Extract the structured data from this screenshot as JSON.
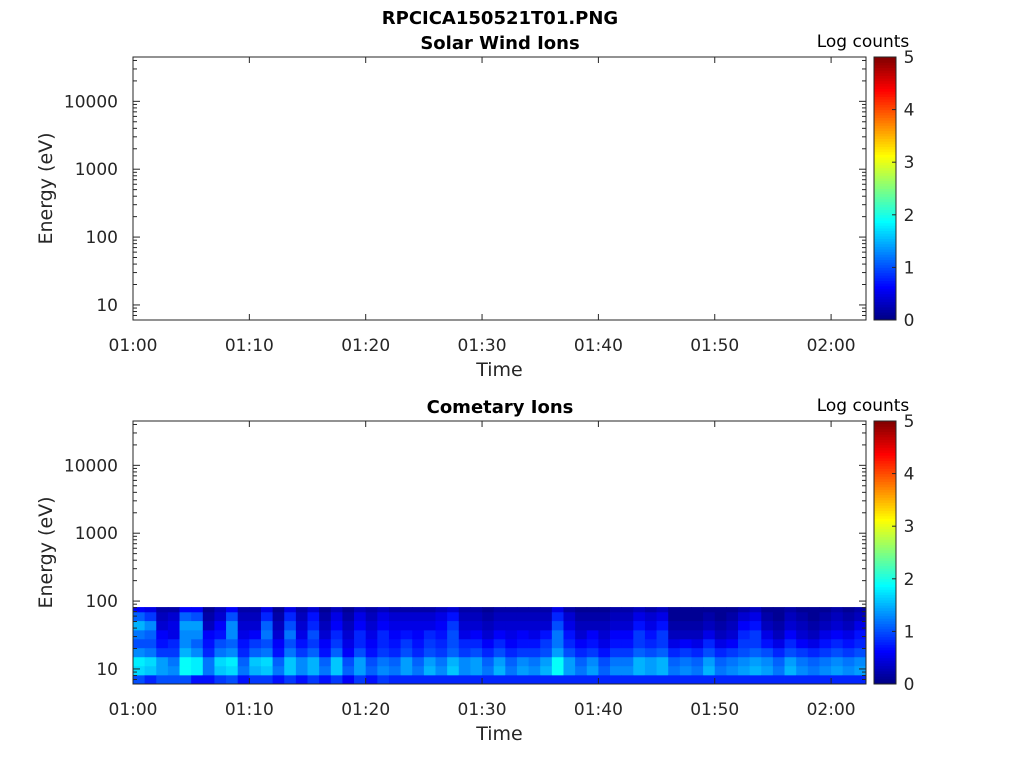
{
  "figure": {
    "title": "RPCICA150521T01.PNG"
  },
  "chart_data": [
    {
      "type": "heatmap",
      "title": "Solar Wind Ions",
      "xlabel": "Time",
      "ylabel": "Energy (eV)",
      "y_scale": "log",
      "ylim": [
        6,
        45000
      ],
      "xlim": [
        "01:00",
        "02:03"
      ],
      "x_ticks": [
        "01:00",
        "01:10",
        "01:20",
        "01:30",
        "01:40",
        "01:50",
        "02:00"
      ],
      "y_ticks": [
        "10",
        "100",
        "1000",
        "10000"
      ],
      "colorbar": {
        "label": "Log counts",
        "min": 0,
        "max": 5,
        "ticks": [
          "0",
          "1",
          "2",
          "3",
          "4",
          "5"
        ],
        "colormap": "jet"
      },
      "energy_bins_ev": [],
      "time_columns": [],
      "values": []
    },
    {
      "type": "heatmap",
      "title": "Cometary Ions",
      "xlabel": "Time",
      "ylabel": "Energy (eV)",
      "y_scale": "log",
      "ylim": [
        6,
        45000
      ],
      "xlim": [
        "01:00",
        "02:03"
      ],
      "x_ticks": [
        "01:00",
        "01:10",
        "01:20",
        "01:30",
        "01:40",
        "01:50",
        "02:00"
      ],
      "y_ticks": [
        "10",
        "100",
        "1000",
        "10000"
      ],
      "colorbar": {
        "label": "Log counts",
        "min": 0,
        "max": 5,
        "ticks": [
          "0",
          "1",
          "2",
          "3",
          "4",
          "5"
        ],
        "colormap": "jet"
      },
      "energy_bins_ev": [
        7,
        9.5,
        13,
        17.5,
        24,
        32,
        44,
        60,
        80
      ],
      "time_columns": [
        "01:00",
        "01:01",
        "01:02",
        "01:03",
        "01:04",
        "01:05",
        "01:06",
        "01:07",
        "01:08",
        "01:09",
        "01:10",
        "01:11",
        "01:12",
        "01:13",
        "01:14",
        "01:15",
        "01:16",
        "01:17",
        "01:18",
        "01:19",
        "01:20",
        "01:21",
        "01:22",
        "01:23",
        "01:24",
        "01:25",
        "01:26",
        "01:27",
        "01:28",
        "01:29",
        "01:30",
        "01:31",
        "01:32",
        "01:33",
        "01:34",
        "01:35",
        "01:36",
        "01:37",
        "01:38",
        "01:39",
        "01:40",
        "01:41",
        "01:42",
        "01:43",
        "01:44",
        "01:45",
        "01:46",
        "01:47",
        "01:48",
        "01:49",
        "01:50",
        "01:51",
        "01:52",
        "01:53",
        "01:54",
        "01:55",
        "01:56",
        "01:57",
        "01:58",
        "01:59",
        "02:00",
        "02:01",
        "02:02"
      ],
      "values": [
        [
          1.0,
          0.8,
          1.0,
          1.0,
          1.0,
          0.7,
          0.7,
          0.9,
          1.0,
          0.7,
          0.9,
          0.9,
          0.7,
          0.9,
          0.7,
          0.9,
          0.7,
          0.9,
          0.6,
          0.9,
          0.7,
          0.9,
          0.8,
          0.8,
          0.8,
          0.8,
          0.8,
          0.8,
          0.8,
          0.8,
          0.8,
          0.8,
          0.8,
          0.8,
          0.8,
          0.8,
          0.8,
          0.8,
          0.8,
          0.8,
          0.8,
          0.8,
          0.8,
          0.8,
          0.8,
          0.8,
          0.8,
          0.8,
          0.8,
          0.8,
          0.8,
          0.8,
          0.8,
          0.8,
          0.8,
          0.8,
          0.8,
          0.8,
          0.8,
          0.8,
          0.8,
          0.8,
          0.8
        ],
        [
          1.7,
          1.6,
          1.4,
          1.3,
          1.9,
          1.8,
          1.2,
          1.6,
          1.7,
          1.2,
          1.5,
          1.6,
          1.2,
          1.6,
          1.3,
          1.5,
          1.2,
          1.6,
          1.1,
          1.4,
          1.1,
          1.3,
          1.2,
          1.4,
          1.2,
          1.5,
          1.3,
          1.6,
          1.3,
          1.4,
          1.2,
          1.5,
          1.2,
          1.4,
          1.3,
          1.5,
          1.9,
          1.4,
          1.2,
          1.4,
          1.1,
          1.3,
          1.3,
          1.5,
          1.4,
          1.5,
          1.2,
          1.3,
          1.2,
          1.5,
          1.2,
          1.3,
          1.4,
          1.5,
          1.4,
          1.2,
          1.5,
          1.3,
          1.2,
          1.3,
          1.4,
          1.3,
          1.4
        ],
        [
          1.8,
          1.7,
          1.4,
          1.2,
          1.9,
          1.8,
          1.2,
          1.7,
          1.8,
          1.1,
          1.6,
          1.7,
          1.1,
          1.6,
          1.3,
          1.5,
          1.1,
          1.6,
          1.0,
          1.4,
          1.0,
          1.2,
          1.1,
          1.4,
          1.1,
          1.4,
          1.2,
          1.5,
          1.3,
          1.4,
          1.1,
          1.4,
          1.1,
          1.3,
          1.2,
          1.4,
          1.9,
          1.4,
          1.1,
          1.3,
          1.0,
          1.2,
          1.2,
          1.5,
          1.4,
          1.5,
          1.1,
          1.2,
          1.1,
          1.4,
          1.1,
          1.2,
          1.3,
          1.4,
          1.3,
          1.1,
          1.4,
          1.2,
          1.1,
          1.2,
          1.3,
          1.2,
          1.3
        ],
        [
          1.3,
          1.2,
          0.9,
          0.9,
          1.5,
          1.3,
          0.8,
          1.2,
          1.3,
          0.8,
          1.1,
          1.2,
          0.7,
          1.2,
          0.9,
          1.1,
          0.7,
          1.1,
          0.6,
          1.0,
          0.7,
          0.9,
          0.8,
          1.0,
          0.8,
          1.0,
          0.9,
          1.1,
          0.9,
          1.0,
          0.8,
          1.0,
          0.8,
          0.9,
          0.9,
          1.0,
          1.4,
          1.0,
          0.8,
          0.9,
          0.7,
          0.9,
          0.9,
          1.1,
          1.0,
          1.1,
          0.8,
          0.9,
          0.8,
          1.0,
          0.8,
          0.9,
          1.0,
          1.1,
          1.0,
          0.8,
          1.0,
          0.9,
          0.8,
          0.9,
          1.0,
          0.9,
          1.0
        ],
        [
          1.0,
          1.0,
          0.7,
          0.8,
          1.3,
          1.1,
          0.7,
          1.0,
          1.1,
          0.7,
          0.9,
          1.0,
          0.6,
          1.0,
          0.7,
          0.9,
          0.6,
          0.9,
          0.5,
          0.8,
          0.6,
          0.8,
          0.7,
          0.9,
          0.7,
          0.9,
          0.8,
          1.0,
          0.8,
          0.8,
          0.6,
          0.8,
          0.6,
          0.7,
          0.7,
          0.9,
          1.2,
          0.8,
          0.6,
          0.7,
          0.5,
          0.7,
          0.7,
          0.9,
          0.8,
          0.9,
          0.5,
          0.6,
          0.5,
          0.8,
          0.5,
          0.6,
          0.9,
          0.9,
          0.7,
          0.5,
          0.8,
          0.6,
          0.5,
          0.7,
          0.8,
          0.7,
          0.8
        ],
        [
          1.2,
          1.1,
          0.6,
          0.5,
          1.3,
          1.3,
          0.6,
          0.7,
          1.3,
          0.5,
          0.6,
          1.2,
          0.4,
          1.2,
          0.5,
          1.0,
          0.4,
          0.8,
          0.4,
          0.8,
          0.5,
          0.8,
          0.6,
          0.7,
          0.6,
          0.8,
          0.7,
          1.0,
          0.5,
          0.6,
          0.4,
          0.6,
          0.5,
          0.6,
          0.5,
          0.7,
          1.2,
          0.7,
          0.4,
          0.6,
          0.4,
          0.6,
          0.6,
          0.9,
          0.7,
          0.9,
          0.3,
          0.3,
          0.3,
          0.5,
          0.3,
          0.4,
          0.8,
          0.9,
          0.5,
          0.3,
          0.6,
          0.4,
          0.3,
          0.5,
          0.6,
          0.5,
          0.7
        ],
        [
          1.5,
          1.3,
          0.4,
          0.5,
          1.4,
          1.4,
          0.3,
          0.6,
          1.3,
          0.4,
          0.4,
          1.1,
          0.3,
          1.0,
          0.4,
          0.8,
          0.3,
          0.6,
          0.3,
          0.6,
          0.4,
          0.6,
          0.5,
          0.5,
          0.5,
          0.5,
          0.6,
          0.9,
          0.4,
          0.4,
          0.3,
          0.4,
          0.4,
          0.4,
          0.4,
          0.4,
          1.0,
          0.5,
          0.3,
          0.3,
          0.3,
          0.4,
          0.4,
          0.7,
          0.5,
          0.7,
          0.2,
          0.2,
          0.2,
          0.3,
          0.2,
          0.3,
          0.6,
          0.7,
          0.3,
          0.2,
          0.4,
          0.3,
          0.2,
          0.3,
          0.4,
          0.3,
          0.5
        ],
        [
          1.1,
          0.9,
          0.3,
          0.4,
          1.1,
          1.0,
          0.2,
          0.4,
          1.0,
          0.3,
          0.3,
          0.8,
          0.2,
          0.8,
          0.3,
          0.7,
          0.2,
          0.5,
          0.2,
          0.5,
          0.3,
          0.5,
          0.4,
          0.4,
          0.4,
          0.4,
          0.5,
          0.7,
          0.3,
          0.3,
          0.2,
          0.3,
          0.3,
          0.3,
          0.3,
          0.3,
          0.8,
          0.4,
          0.2,
          0.2,
          0.2,
          0.3,
          0.3,
          0.5,
          0.4,
          0.5,
          0.1,
          0.1,
          0.1,
          0.2,
          0.1,
          0.2,
          0.4,
          0.5,
          0.2,
          0.1,
          0.3,
          0.2,
          0.1,
          0.2,
          0.3,
          0.2,
          0.3
        ],
        [
          0.6,
          0.5,
          0.2,
          0.2,
          0.6,
          0.6,
          0.1,
          0.3,
          0.6,
          0.2,
          0.2,
          0.5,
          0.1,
          0.5,
          0.2,
          0.4,
          0.1,
          0.3,
          0.1,
          0.3,
          0.2,
          0.3,
          0.2,
          0.2,
          0.2,
          0.2,
          0.3,
          0.4,
          0.2,
          0.2,
          0.1,
          0.2,
          0.2,
          0.2,
          0.2,
          0.2,
          0.5,
          0.2,
          0.1,
          0.1,
          0.1,
          0.2,
          0.2,
          0.3,
          0.2,
          0.3,
          0.1,
          0.1,
          0.1,
          0.1,
          0.1,
          0.1,
          0.2,
          0.3,
          0.1,
          0.1,
          0.2,
          0.1,
          0.1,
          0.1,
          0.2,
          0.1,
          0.2
        ]
      ]
    }
  ]
}
